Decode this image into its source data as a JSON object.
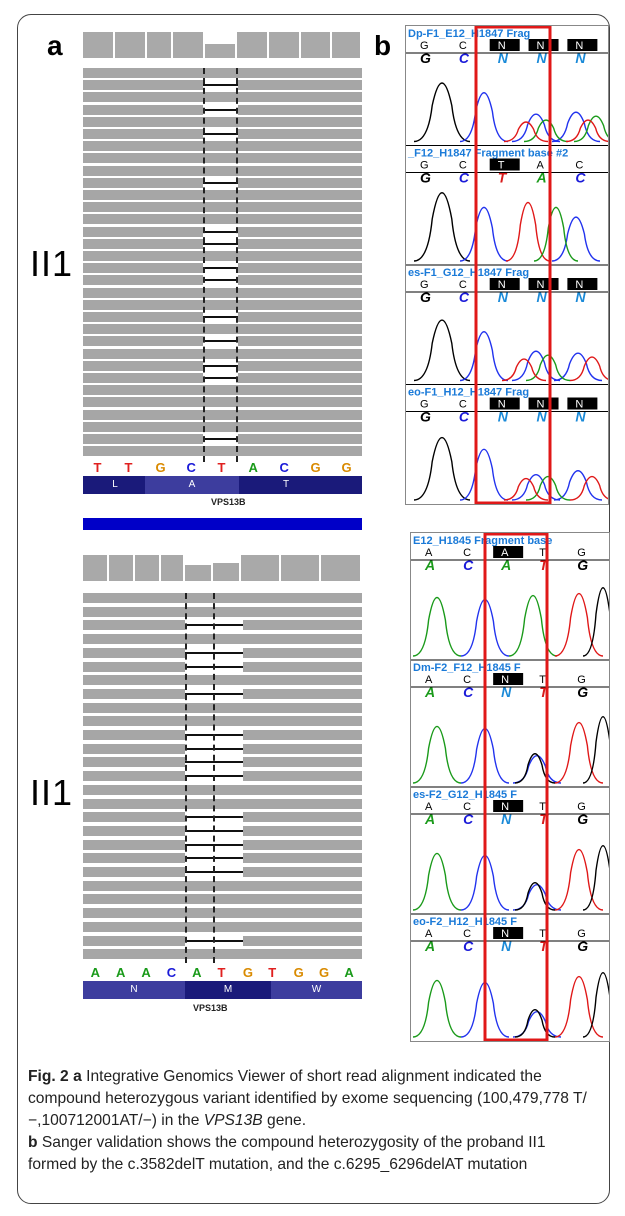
{
  "figure": {
    "panel_a": "a",
    "panel_b": "b",
    "row_label_top": "II1",
    "row_label_bottom": "II1"
  },
  "igv_top": {
    "bases": [
      "T",
      "T",
      "G",
      "C",
      "T",
      "A",
      "C",
      "G",
      "G"
    ],
    "base_colors": [
      "#e0201f",
      "#e0201f",
      "#d98a00",
      "#1a1ad8",
      "#e0201f",
      "#1a9a1a",
      "#1a1ad8",
      "#d98a00",
      "#d98a00"
    ],
    "amino_acids": [
      "L",
      "A",
      "T"
    ],
    "gene": "VPS13B"
  },
  "igv_bottom": {
    "bases": [
      "A",
      "A",
      "A",
      "C",
      "A",
      "T",
      "G",
      "T",
      "G",
      "G",
      "A"
    ],
    "base_colors": [
      "#1a9a1a",
      "#1a9a1a",
      "#1a9a1a",
      "#1a1ad8",
      "#1a9a1a",
      "#e0201f",
      "#d98a00",
      "#e0201f",
      "#d98a00",
      "#d98a00",
      "#1a9a1a"
    ],
    "amino_acids": [
      "N",
      "M",
      "W"
    ],
    "gene": "VPS13B"
  },
  "sanger_top": [
    {
      "header": "Dp-F1_E12_H1847 Frag",
      "calls": [
        "G",
        "C",
        "N",
        "N",
        "N"
      ],
      "bases": [
        "G",
        "C",
        "N",
        "N",
        "N"
      ]
    },
    {
      "header": "_F12_H1847 Fragment base #2",
      "calls": [
        "G",
        "C",
        "T",
        "A",
        "C"
      ],
      "bases": [
        "G",
        "C",
        "T",
        "A",
        "C"
      ]
    },
    {
      "header": "es-F1_G12_H1847 Frag",
      "calls": [
        "G",
        "C",
        "N",
        "N",
        "N"
      ],
      "bases": [
        "G",
        "C",
        "N",
        "N",
        "N"
      ]
    },
    {
      "header": "eo-F1_H12_H1847 Frag",
      "calls": [
        "G",
        "C",
        "N",
        "N",
        "N"
      ],
      "bases": [
        "G",
        "C",
        "N",
        "N",
        "N"
      ]
    }
  ],
  "sanger_bottom": [
    {
      "header": "E12_H1845 Fragment base",
      "calls": [
        "A",
        "C",
        "A",
        "T",
        "G"
      ],
      "bases": [
        "A",
        "C",
        "A",
        "T",
        "G"
      ]
    },
    {
      "header": "Dm-F2_F12_H1845 F",
      "calls": [
        "A",
        "C",
        "N",
        "T",
        "G"
      ],
      "bases": [
        "A",
        "C",
        "N",
        "T",
        "G"
      ]
    },
    {
      "header": "es-F2_G12_H1845 F",
      "calls": [
        "A",
        "C",
        "N",
        "T",
        "G"
      ],
      "bases": [
        "A",
        "C",
        "N",
        "T",
        "G"
      ]
    },
    {
      "header": "eo-F2_H12_H1845 F",
      "calls": [
        "A",
        "C",
        "N",
        "T",
        "G"
      ],
      "bases": [
        "A",
        "C",
        "N",
        "T",
        "G"
      ]
    }
  ],
  "caption": {
    "fig_label": "Fig. 2",
    "a_label": "a",
    "a_text_1": "Integrative Genomics Viewer of short read alignment indicated the compound heterozygous variant identified by exome sequencing (100,479,778 T/−,100712001AT/−) in the",
    "gene": "VPS13B",
    "a_text_2": "gene.",
    "b_label": "b",
    "b_text": "Sanger validation shows the compound heterozygosity of the proband II1 formed by the c.3582delT mutation, and the c.6295_6296delAT mutation"
  }
}
